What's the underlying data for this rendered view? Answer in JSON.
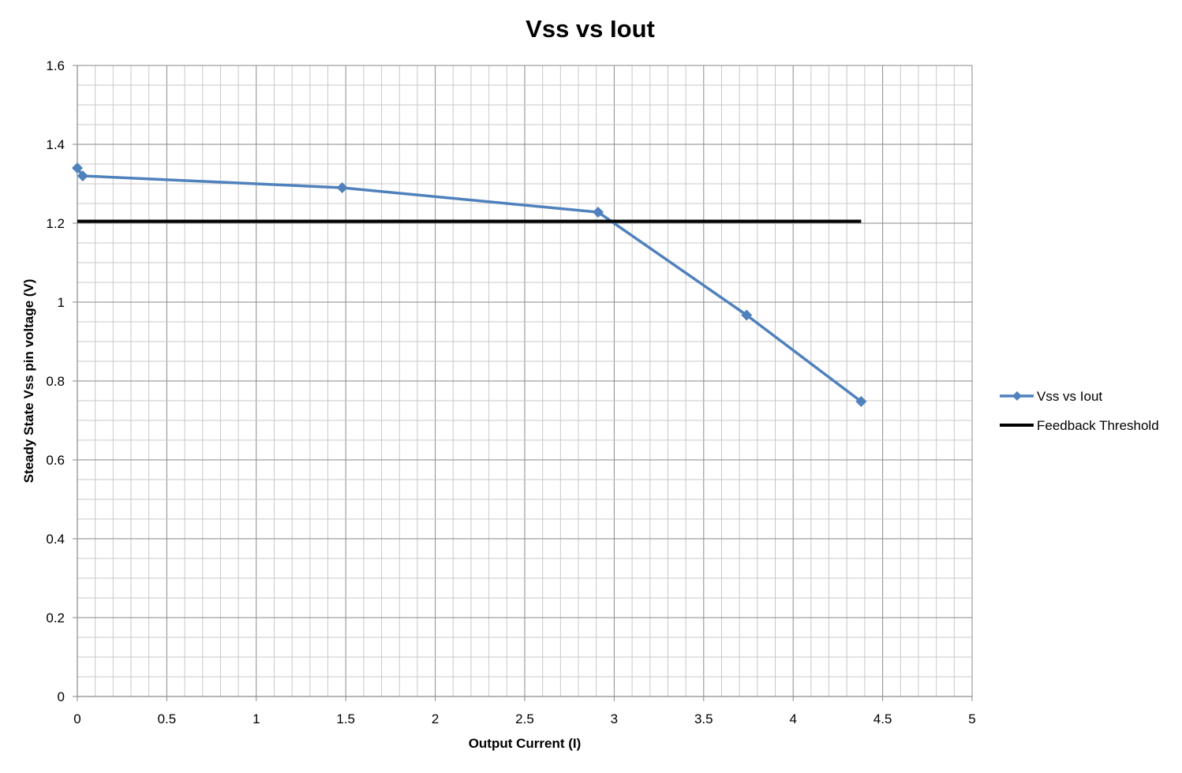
{
  "chart_data": {
    "type": "line",
    "title": "Vss vs Iout",
    "xlabel": "Output Current (I)",
    "ylabel": "Steady State Vss pin voltage (V)",
    "xlim": [
      0,
      5
    ],
    "ylim": [
      0,
      1.6
    ],
    "x_ticks": [
      "0",
      "0.5",
      "1",
      "1.5",
      "2",
      "2.5",
      "3",
      "3.5",
      "4",
      "4.5",
      "5"
    ],
    "y_ticks": [
      "0",
      "0.2",
      "0.4",
      "0.6",
      "0.8",
      "1",
      "1.2",
      "1.4",
      "1.6"
    ],
    "grid": true,
    "legend_position": "right",
    "series": [
      {
        "name": "Vss vs Iout",
        "color": "#4F81BD",
        "marker": "diamond",
        "x": [
          0.0,
          0.03,
          1.48,
          2.91,
          3.74,
          4.38
        ],
        "y": [
          1.34,
          1.32,
          1.29,
          1.228,
          0.967,
          0.748
        ]
      },
      {
        "name": "Feedback Threshold",
        "color": "#000000",
        "marker": "none",
        "x": [
          0.0,
          4.38
        ],
        "y": [
          1.205,
          1.205
        ]
      }
    ]
  }
}
